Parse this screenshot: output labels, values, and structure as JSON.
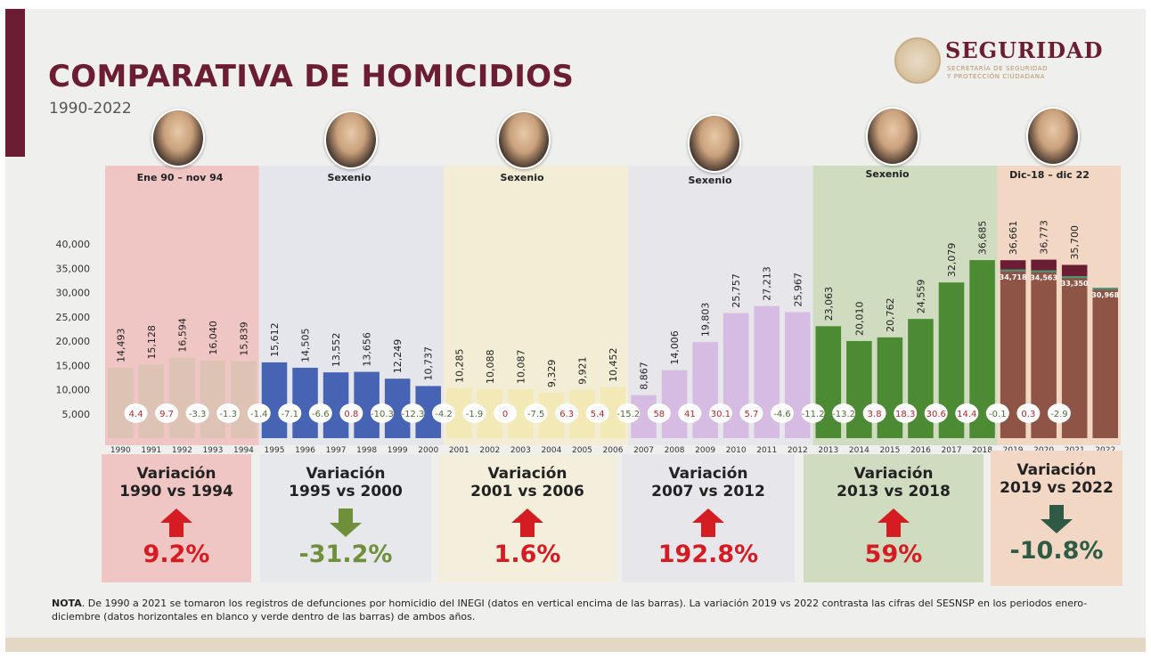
{
  "header": {
    "title": "COMPARATIVA DE HOMICIDIOS",
    "subtitle": "1990-2022",
    "brand_name": "SEGURIDAD",
    "brand_sub_line1": "SECRETARÍA DE SEGURIDAD",
    "brand_sub_line2": "Y PROTECCIÓN CIUDADANA"
  },
  "periods": [
    {
      "label": "Ene 90 – nov 94",
      "bg": "#efc6c4",
      "bar_color": "#dcc3b3"
    },
    {
      "label": "Sexenio",
      "bg": "#e4e6ec",
      "bar_color": "#4764b4"
    },
    {
      "label": "Sexenio",
      "bg": "#f3edd6",
      "bar_color": "#f2e9b6"
    },
    {
      "label": "Sexenio",
      "bg": "#e7e6ea",
      "bar_color": "#d6bce3"
    },
    {
      "label": "Sexenio",
      "bg": "#cfdcc0",
      "bar_color": "#4d8a34"
    },
    {
      "label": "Dic-18 – dic 22",
      "bg": "#f2d8c4",
      "bar_color": "#8e5446"
    }
  ],
  "variations": [
    {
      "title_line1": "Variación",
      "title_line2": "1990 vs 1994",
      "value": "9.2%",
      "direction": "up",
      "color": "#d41c22",
      "bg": "#efc6c4"
    },
    {
      "title_line1": "Variación",
      "title_line2": "1995 vs 2000",
      "value": "-31.2%",
      "direction": "down",
      "color": "#6f8f3a",
      "bg": "#e7e8ec"
    },
    {
      "title_line1": "Variación",
      "title_line2": "2001 vs 2006",
      "value": "1.6%",
      "direction": "up",
      "color": "#d41c22",
      "bg": "#f4efdc"
    },
    {
      "title_line1": "Variación",
      "title_line2": "2007 vs 2012",
      "value": "192.8%",
      "direction": "up",
      "color": "#d41c22",
      "bg": "#e7e6ea"
    },
    {
      "title_line1": "Variación",
      "title_line2": "2013 vs 2018",
      "value": "59%",
      "direction": "up",
      "color": "#d41c22",
      "bg": "#cfdcc0"
    },
    {
      "title_line1": "Variación",
      "title_line2": "2019 vs 2022",
      "value": "-10.8%",
      "direction": "down",
      "color": "#2f5a45",
      "bg": "#f2d8c4"
    }
  ],
  "note_label": "NOTA",
  "note_text": ". De 1990 a 2021 se tomaron los registros de defunciones por homicidio del INEGI (datos en vertical encima de las barras). La variación 2019 vs 2022 contrasta las cifras del SESNSP en los periodos enero-diciembre (datos horizontales en blanco y verde dentro de las barras) de ambos años.",
  "chart_data": {
    "type": "bar",
    "title": "COMPARATIVA DE HOMICIDIOS",
    "subtitle": "1990-2022",
    "categories": [
      "1990",
      "1991",
      "1992",
      "1993",
      "1994",
      "1995",
      "1996",
      "1997",
      "1998",
      "1999",
      "2000",
      "2001",
      "2002",
      "2003",
      "2004",
      "2005",
      "2006",
      "2007",
      "2008",
      "2009",
      "2010",
      "2011",
      "2012",
      "2013",
      "2014",
      "2015",
      "2016",
      "2017",
      "2018",
      "2019",
      "2020",
      "2021",
      "2022"
    ],
    "series": [
      {
        "values": [
          14493,
          15128,
          16594,
          16040,
          15839,
          15612,
          14505,
          13552,
          13656,
          12249,
          10737,
          10285,
          10088,
          10087,
          9329,
          9921,
          10452,
          8867,
          14006,
          19803,
          25757,
          27213,
          25967,
          23063,
          20010,
          20762,
          24559,
          32079,
          36685,
          36661,
          36773,
          35700,
          null
        ]
      },
      {
        "values": [
          null,
          null,
          null,
          null,
          null,
          null,
          null,
          null,
          null,
          null,
          null,
          null,
          null,
          null,
          null,
          null,
          null,
          null,
          null,
          null,
          null,
          null,
          null,
          null,
          null,
          null,
          null,
          null,
          null,
          34718,
          34563,
          33350,
          30968
        ]
      }
    ],
    "value_labels": [
      "14,493",
      "15,128",
      "16,594",
      "16,040",
      "15,839",
      "15,612",
      "14,505",
      "13,552",
      "13,656",
      "12,249",
      "10,737",
      "10,285",
      "10,088",
      "10,087",
      "9,329",
      "9,921",
      "10,452",
      "8,867",
      "14,006",
      "19,803",
      "25,757",
      "27,213",
      "25,967",
      "23,063",
      "20,010",
      "20,762",
      "24,559",
      "32,079",
      "36,685",
      "36,661",
      "36,773",
      "35,700",
      ""
    ],
    "sesnsp_labels": [
      "34,718",
      "34,563",
      "33,350",
      "30,968"
    ],
    "yearly_change_pct": [
      "4.4",
      "9.7",
      "-3.3",
      "-1.3",
      "-1.4",
      "-7.1",
      "-6.6",
      "0.8",
      "-10.3",
      "-12.3",
      "-4.2",
      "-1.9",
      "0",
      "-7.5",
      "6.3",
      "5.4",
      "-15.2",
      "58",
      "41",
      "30.1",
      "5.7",
      "-4.6",
      "-11.2",
      "-13.2",
      "3.8",
      "18.3",
      "30.6",
      "14.4",
      "-0.1",
      "0.3",
      "-2.9"
    ],
    "yticks": [
      "40,000",
      "35,000",
      "30,000",
      "25,000",
      "20,000",
      "15,000",
      "10,000",
      "5,000"
    ],
    "ylim": [
      0,
      40000
    ],
    "grid": false,
    "colors": {
      "positive": "#b3262b",
      "negative": "#4f6b37",
      "top_cap": "#6b1d33",
      "sesnsp_line": "#3e9a7a"
    }
  }
}
